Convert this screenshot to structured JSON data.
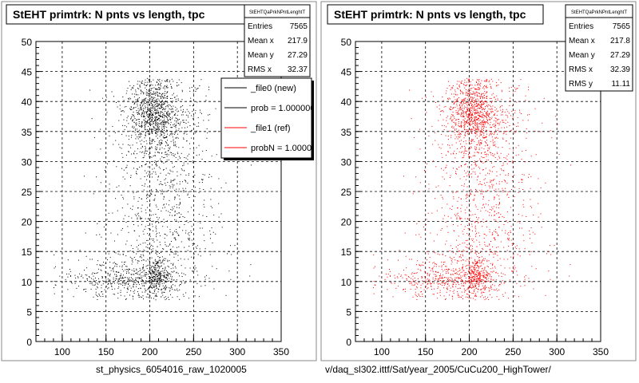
{
  "chart_data": [
    {
      "type": "scatter",
      "title": "StEHT primtrk: N pnts vs length, tpc",
      "xlabel": "st_physics_6054016_raw_1020005",
      "ylabel": "",
      "xlim": [
        70,
        350
      ],
      "ylim": [
        0,
        50
      ],
      "xticks": [
        "100",
        "150",
        "200",
        "250",
        "300",
        "350"
      ],
      "yticks": [
        "0",
        "5",
        "10",
        "15",
        "20",
        "25",
        "30",
        "35",
        "40",
        "45",
        "50"
      ],
      "grid": true,
      "point_color": "#000000",
      "stats": {
        "name": "StEHTQaPrkNPntLenghtT",
        "rows": [
          {
            "label": "Entries",
            "value": "7565"
          },
          {
            "label": "Mean x",
            "value": "217.9"
          },
          {
            "label": "Mean y",
            "value": "27.29"
          },
          {
            "label": "RMS x",
            "value": "32.37"
          }
        ]
      },
      "legend": {
        "placement": "top-right",
        "entries": [
          {
            "label": "_file0 (new)",
            "color": "#000000"
          },
          {
            "label": "prob = 1.000000",
            "color": "#000000"
          },
          {
            "label": "_file1 (ref)",
            "color": "#ff0000"
          },
          {
            "label": "probN = 1.000000",
            "color": "#ff0000"
          }
        ]
      }
    },
    {
      "type": "scatter",
      "title": "StEHT primtrk: N pnts vs length, tpc",
      "xlabel": "v/daq_sl302.ittf/Sat/year_2005/CuCu200_HighTower/",
      "ylabel": "",
      "xlim": [
        70,
        350
      ],
      "ylim": [
        0,
        50
      ],
      "xticks": [
        "100",
        "150",
        "200",
        "250",
        "300",
        "350"
      ],
      "yticks": [
        "0",
        "5",
        "10",
        "15",
        "20",
        "25",
        "30",
        "35",
        "40",
        "45",
        "50"
      ],
      "grid": true,
      "point_color": "#ff0000",
      "stats": {
        "name": "StEHTQaPrkNPntLenghtT",
        "rows": [
          {
            "label": "Entries",
            "value": "7565"
          },
          {
            "label": "Mean x",
            "value": "217.8"
          },
          {
            "label": "Mean y",
            "value": "27.29"
          },
          {
            "label": "RMS x",
            "value": "32.39"
          },
          {
            "label": "RMS y",
            "value": "11.11"
          }
        ]
      }
    }
  ]
}
